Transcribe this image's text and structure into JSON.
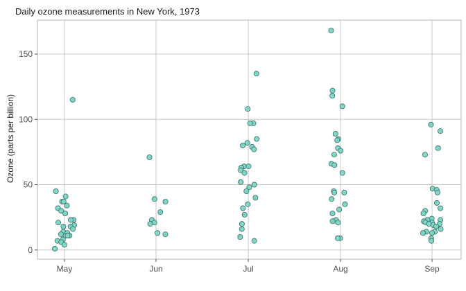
{
  "chart_data": {
    "type": "scatter",
    "title": "Daily ozone measurements in New York, 1973",
    "xlabel": "",
    "ylabel": "Ozone (parts per billion)",
    "categories": [
      "May",
      "Jun",
      "Jul",
      "Aug",
      "Sep"
    ],
    "yticks": [
      0,
      50,
      100,
      150
    ],
    "ylim": [
      -7,
      176
    ],
    "grid": true,
    "point_color": "#7fd6c8",
    "point_stroke": "#3a6b64",
    "points": [
      {
        "month": "May",
        "y": 115
      },
      {
        "month": "May",
        "y": 45
      },
      {
        "month": "May",
        "y": 41
      },
      {
        "month": "May",
        "y": 37
      },
      {
        "month": "May",
        "y": 37
      },
      {
        "month": "May",
        "y": 34
      },
      {
        "month": "May",
        "y": 32
      },
      {
        "month": "May",
        "y": 30
      },
      {
        "month": "May",
        "y": 28
      },
      {
        "month": "May",
        "y": 23
      },
      {
        "month": "May",
        "y": 23
      },
      {
        "month": "May",
        "y": 21
      },
      {
        "month": "May",
        "y": 19
      },
      {
        "month": "May",
        "y": 18
      },
      {
        "month": "May",
        "y": 18
      },
      {
        "month": "May",
        "y": 16
      },
      {
        "month": "May",
        "y": 14
      },
      {
        "month": "May",
        "y": 13
      },
      {
        "month": "May",
        "y": 12
      },
      {
        "month": "May",
        "y": 11
      },
      {
        "month": "May",
        "y": 11
      },
      {
        "month": "May",
        "y": 11
      },
      {
        "month": "May",
        "y": 8
      },
      {
        "month": "May",
        "y": 7
      },
      {
        "month": "May",
        "y": 6
      },
      {
        "month": "May",
        "y": 4
      },
      {
        "month": "May",
        "y": 1
      },
      {
        "month": "Jun",
        "y": 71
      },
      {
        "month": "Jun",
        "y": 39
      },
      {
        "month": "Jun",
        "y": 37
      },
      {
        "month": "Jun",
        "y": 29
      },
      {
        "month": "Jun",
        "y": 23
      },
      {
        "month": "Jun",
        "y": 21
      },
      {
        "month": "Jun",
        "y": 20
      },
      {
        "month": "Jun",
        "y": 13
      },
      {
        "month": "Jun",
        "y": 12
      },
      {
        "month": "Jul",
        "y": 135
      },
      {
        "month": "Jul",
        "y": 108
      },
      {
        "month": "Jul",
        "y": 97
      },
      {
        "month": "Jul",
        "y": 97
      },
      {
        "month": "Jul",
        "y": 85
      },
      {
        "month": "Jul",
        "y": 82
      },
      {
        "month": "Jul",
        "y": 80
      },
      {
        "month": "Jul",
        "y": 79
      },
      {
        "month": "Jul",
        "y": 77
      },
      {
        "month": "Jul",
        "y": 64
      },
      {
        "month": "Jul",
        "y": 64
      },
      {
        "month": "Jul",
        "y": 63
      },
      {
        "month": "Jul",
        "y": 61
      },
      {
        "month": "Jul",
        "y": 59
      },
      {
        "month": "Jul",
        "y": 52
      },
      {
        "month": "Jul",
        "y": 50
      },
      {
        "month": "Jul",
        "y": 48
      },
      {
        "month": "Jul",
        "y": 45
      },
      {
        "month": "Jul",
        "y": 40
      },
      {
        "month": "Jul",
        "y": 35
      },
      {
        "month": "Jul",
        "y": 32
      },
      {
        "month": "Jul",
        "y": 27
      },
      {
        "month": "Jul",
        "y": 20
      },
      {
        "month": "Jul",
        "y": 16
      },
      {
        "month": "Jul",
        "y": 10
      },
      {
        "month": "Jul",
        "y": 7
      },
      {
        "month": "Aug",
        "y": 168
      },
      {
        "month": "Aug",
        "y": 122
      },
      {
        "month": "Aug",
        "y": 118
      },
      {
        "month": "Aug",
        "y": 110
      },
      {
        "month": "Aug",
        "y": 89
      },
      {
        "month": "Aug",
        "y": 85
      },
      {
        "month": "Aug",
        "y": 84
      },
      {
        "month": "Aug",
        "y": 78
      },
      {
        "month": "Aug",
        "y": 76
      },
      {
        "month": "Aug",
        "y": 73
      },
      {
        "month": "Aug",
        "y": 66
      },
      {
        "month": "Aug",
        "y": 65
      },
      {
        "month": "Aug",
        "y": 59
      },
      {
        "month": "Aug",
        "y": 45
      },
      {
        "month": "Aug",
        "y": 44
      },
      {
        "month": "Aug",
        "y": 44
      },
      {
        "month": "Aug",
        "y": 39
      },
      {
        "month": "Aug",
        "y": 35
      },
      {
        "month": "Aug",
        "y": 31
      },
      {
        "month": "Aug",
        "y": 28
      },
      {
        "month": "Aug",
        "y": 23
      },
      {
        "month": "Aug",
        "y": 22
      },
      {
        "month": "Aug",
        "y": 21
      },
      {
        "month": "Aug",
        "y": 9
      },
      {
        "month": "Aug",
        "y": 9
      },
      {
        "month": "Sep",
        "y": 96
      },
      {
        "month": "Sep",
        "y": 91
      },
      {
        "month": "Sep",
        "y": 78
      },
      {
        "month": "Sep",
        "y": 73
      },
      {
        "month": "Sep",
        "y": 47
      },
      {
        "month": "Sep",
        "y": 46
      },
      {
        "month": "Sep",
        "y": 44
      },
      {
        "month": "Sep",
        "y": 36
      },
      {
        "month": "Sep",
        "y": 32
      },
      {
        "month": "Sep",
        "y": 30
      },
      {
        "month": "Sep",
        "y": 28
      },
      {
        "month": "Sep",
        "y": 24
      },
      {
        "month": "Sep",
        "y": 23
      },
      {
        "month": "Sep",
        "y": 23
      },
      {
        "month": "Sep",
        "y": 22
      },
      {
        "month": "Sep",
        "y": 21
      },
      {
        "month": "Sep",
        "y": 21
      },
      {
        "month": "Sep",
        "y": 20
      },
      {
        "month": "Sep",
        "y": 20
      },
      {
        "month": "Sep",
        "y": 19
      },
      {
        "month": "Sep",
        "y": 18
      },
      {
        "month": "Sep",
        "y": 16
      },
      {
        "month": "Sep",
        "y": 14
      },
      {
        "month": "Sep",
        "y": 14
      },
      {
        "month": "Sep",
        "y": 13
      },
      {
        "month": "Sep",
        "y": 13
      },
      {
        "month": "Sep",
        "y": 13
      },
      {
        "month": "Sep",
        "y": 9
      },
      {
        "month": "Sep",
        "y": 7
      }
    ]
  }
}
